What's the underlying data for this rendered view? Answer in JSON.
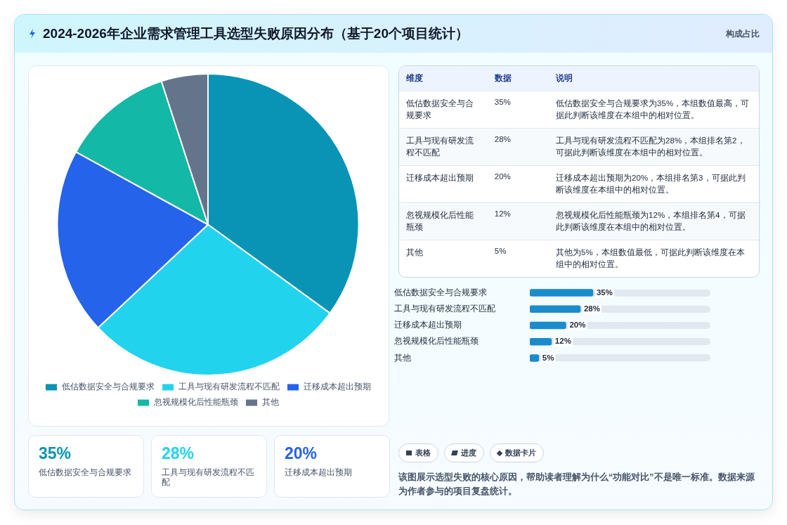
{
  "chart_data": [
    {
      "type": "pie",
      "title": "2024-2026年企业需求管理工具选型失败原因分布（基于20个项目统计）",
      "categories": [
        "低估数据安全与合规要求",
        "工具与现有研发流程不匹配",
        "迁移成本超出预期",
        "忽视规模化后性能瓶颈",
        "其他"
      ],
      "values": [
        35,
        28,
        20,
        12,
        5
      ],
      "colors": [
        "#0993b5",
        "#22d3ee",
        "#2563eb",
        "#14b8a6",
        "#64748b"
      ],
      "legend": "bottom",
      "annotations": [
        "构成占比",
        "维度",
        "数据",
        "说明",
        "35%",
        "28%",
        "20%",
        "12%",
        "5%",
        "低估数据安全与合规要求为35%，本组数值最高，可据此判断该维度在本组中的相对位置。",
        "工具与现有研发流程不匹配为28%，本组排名第2，可据此判断该维度在本组中的相对位置。",
        "迁移成本超出预期为20%，本组排名第3，可据此判断该维度在本组中的相对位置。",
        "忽视规模化后性能瓶颈为12%，本组排名第4，可据此判断该维度在本组中的相对位置。",
        "其他为5%，本组数值最低，可据此判断该维度在本组中的相对位置。",
        "表格",
        "进度",
        "数据卡片",
        "该图展示选型失败的核心原因，帮助读者理解为什么“功能对比”不是唯一标准。数据来源为作者参与的项目复盘统计。"
      ]
    },
    {
      "type": "bar",
      "orientation": "horizontal",
      "categories": [
        "低估数据安全与合规要求",
        "工具与现有研发流程不匹配",
        "迁移成本超出预期",
        "忽视规模化后性能瓶颈",
        "其他"
      ],
      "values": [
        35,
        28,
        20,
        12,
        5
      ],
      "color": "#1a8bcb",
      "value_labels": [
        "35%",
        "28%",
        "20%",
        "12%",
        "5%"
      ],
      "xlim": [
        0,
        100
      ],
      "tick_labels": "y"
    }
  ]
}
